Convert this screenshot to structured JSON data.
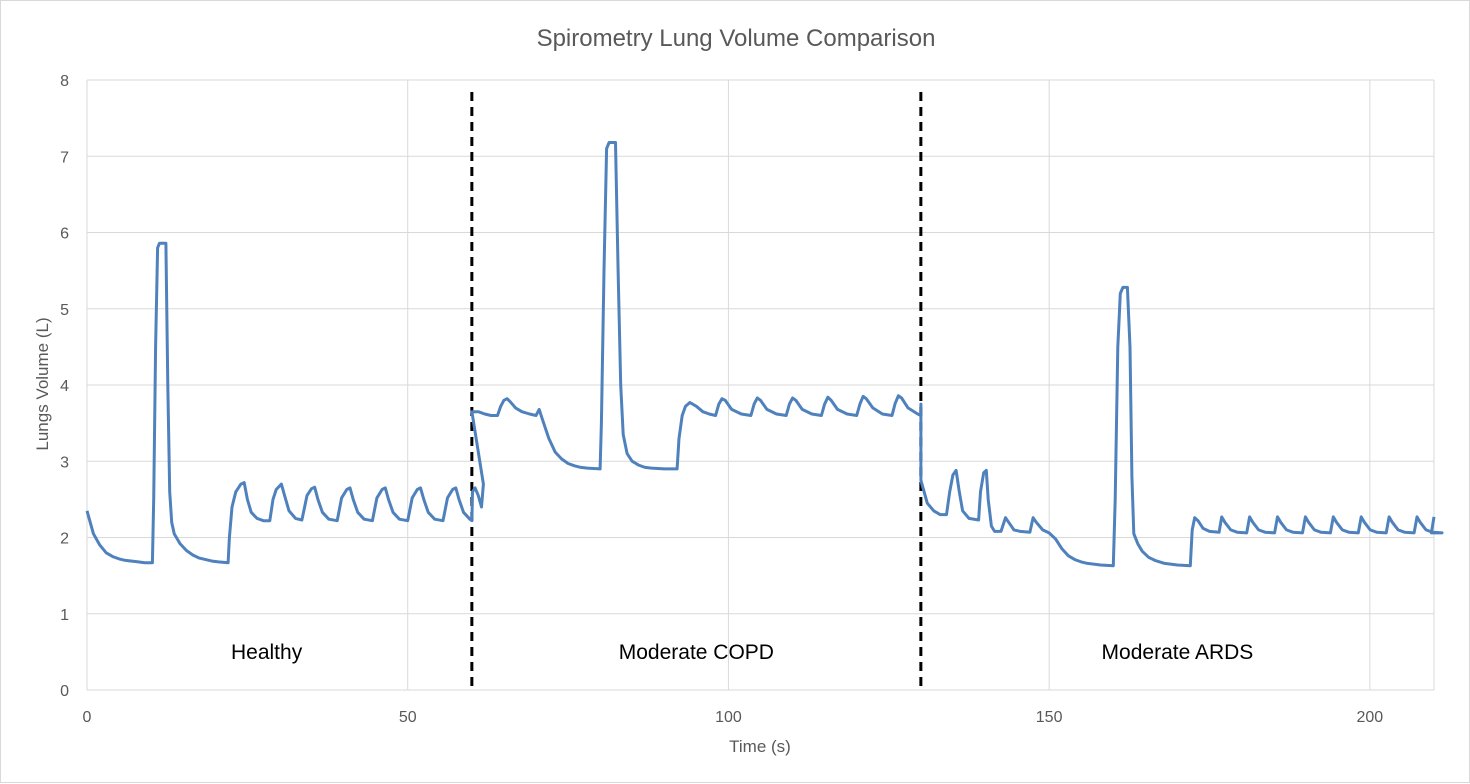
{
  "chart_data": {
    "type": "line",
    "title": "Spirometry Lung Volume Comparison",
    "xlabel": "Time (s)",
    "ylabel": "Lungs Volume (L)",
    "xlim": [
      0,
      210
    ],
    "ylim": [
      0,
      8
    ],
    "x_ticks": [
      "0",
      "50",
      "100",
      "150",
      "200"
    ],
    "y_ticks": [
      "0",
      "1",
      "2",
      "3",
      "4",
      "5",
      "6",
      "7",
      "8"
    ],
    "grid": true,
    "line_color": "#4f81bd",
    "dividers": [
      60,
      130
    ],
    "regions": [
      {
        "label": "Healthy",
        "x": 28,
        "y": 0.5
      },
      {
        "label": "Moderate COPD",
        "x": 95,
        "y": 0.5
      },
      {
        "label": "Moderate ARDS",
        "x": 170,
        "y": 0.5
      }
    ],
    "series": [
      {
        "values_xy": [
          [
            0,
            2.35
          ],
          [
            1,
            2.05
          ],
          [
            2,
            1.9
          ],
          [
            3,
            1.8
          ],
          [
            4,
            1.75
          ],
          [
            5,
            1.72
          ],
          [
            6,
            1.7
          ],
          [
            7,
            1.69
          ],
          [
            8,
            1.68
          ],
          [
            9,
            1.67
          ],
          [
            10.2,
            1.67
          ],
          [
            10.4,
            2.5
          ],
          [
            10.7,
            4.5
          ],
          [
            11,
            5.8
          ],
          [
            11.3,
            5.86
          ],
          [
            12,
            5.86
          ],
          [
            12.3,
            5.86
          ],
          [
            12.6,
            4.0
          ],
          [
            12.9,
            2.6
          ],
          [
            13.2,
            2.2
          ],
          [
            13.6,
            2.05
          ],
          [
            14.5,
            1.92
          ],
          [
            15.5,
            1.83
          ],
          [
            16.5,
            1.77
          ],
          [
            17.5,
            1.73
          ],
          [
            18.5,
            1.71
          ],
          [
            19.5,
            1.69
          ],
          [
            20.5,
            1.68
          ],
          [
            22,
            1.67
          ],
          [
            22.2,
            2.0
          ],
          [
            22.6,
            2.4
          ],
          [
            23.2,
            2.6
          ],
          [
            24,
            2.7
          ],
          [
            24.5,
            2.72
          ],
          [
            25,
            2.5
          ],
          [
            25.6,
            2.33
          ],
          [
            26.5,
            2.25
          ],
          [
            27.5,
            2.22
          ],
          [
            28.5,
            2.22
          ],
          [
            29,
            2.5
          ],
          [
            29.5,
            2.63
          ],
          [
            30.3,
            2.7
          ],
          [
            30.8,
            2.55
          ],
          [
            31.5,
            2.35
          ],
          [
            32.5,
            2.25
          ],
          [
            33.5,
            2.23
          ],
          [
            34.3,
            2.55
          ],
          [
            35,
            2.64
          ],
          [
            35.5,
            2.66
          ],
          [
            36,
            2.5
          ],
          [
            36.7,
            2.33
          ],
          [
            37.7,
            2.24
          ],
          [
            39,
            2.22
          ],
          [
            39.7,
            2.52
          ],
          [
            40.5,
            2.63
          ],
          [
            41,
            2.65
          ],
          [
            41.5,
            2.5
          ],
          [
            42.2,
            2.33
          ],
          [
            43.2,
            2.24
          ],
          [
            44.5,
            2.22
          ],
          [
            45.2,
            2.52
          ],
          [
            46,
            2.63
          ],
          [
            46.5,
            2.65
          ],
          [
            47,
            2.5
          ],
          [
            47.7,
            2.33
          ],
          [
            48.7,
            2.24
          ],
          [
            50,
            2.22
          ],
          [
            50.7,
            2.52
          ],
          [
            51.5,
            2.63
          ],
          [
            52,
            2.65
          ],
          [
            52.5,
            2.5
          ],
          [
            53.2,
            2.33
          ],
          [
            54.2,
            2.24
          ],
          [
            55.5,
            2.22
          ],
          [
            56.2,
            2.52
          ],
          [
            57,
            2.63
          ],
          [
            57.5,
            2.65
          ],
          [
            58,
            2.5
          ],
          [
            58.7,
            2.33
          ],
          [
            59.7,
            2.24
          ],
          [
            60,
            2.22
          ],
          [
            60.1,
            2.6
          ],
          [
            60.5,
            2.65
          ],
          [
            61,
            2.55
          ],
          [
            61.5,
            2.4
          ],
          [
            61.8,
            2.7
          ],
          [
            60,
            3.65
          ],
          [
            61,
            3.65
          ],
          [
            62,
            3.62
          ],
          [
            63,
            3.6
          ],
          [
            64,
            3.6
          ],
          [
            64.5,
            3.72
          ],
          [
            65,
            3.8
          ],
          [
            65.5,
            3.82
          ],
          [
            66,
            3.78
          ],
          [
            66.8,
            3.7
          ],
          [
            67.8,
            3.65
          ],
          [
            69,
            3.62
          ],
          [
            70,
            3.6
          ],
          [
            70.5,
            3.68
          ],
          [
            71,
            3.55
          ],
          [
            72,
            3.3
          ],
          [
            73,
            3.12
          ],
          [
            74,
            3.03
          ],
          [
            75,
            2.97
          ],
          [
            76,
            2.94
          ],
          [
            77,
            2.92
          ],
          [
            78,
            2.91
          ],
          [
            80,
            2.9
          ],
          [
            80.2,
            3.5
          ],
          [
            80.6,
            5.5
          ],
          [
            81,
            7.1
          ],
          [
            81.4,
            7.18
          ],
          [
            82,
            7.18
          ],
          [
            82.4,
            7.18
          ],
          [
            82.8,
            5.5
          ],
          [
            83.2,
            4.0
          ],
          [
            83.6,
            3.35
          ],
          [
            84.2,
            3.1
          ],
          [
            85,
            3.0
          ],
          [
            86,
            2.95
          ],
          [
            87,
            2.92
          ],
          [
            88,
            2.91
          ],
          [
            90,
            2.9
          ],
          [
            92,
            2.9
          ],
          [
            92.3,
            3.3
          ],
          [
            92.8,
            3.6
          ],
          [
            93.3,
            3.72
          ],
          [
            94,
            3.77
          ],
          [
            95,
            3.72
          ],
          [
            96,
            3.65
          ],
          [
            97,
            3.62
          ],
          [
            98,
            3.6
          ],
          [
            98.5,
            3.75
          ],
          [
            99,
            3.82
          ],
          [
            99.5,
            3.8
          ],
          [
            100.5,
            3.68
          ],
          [
            102,
            3.62
          ],
          [
            103.5,
            3.6
          ],
          [
            104,
            3.75
          ],
          [
            104.5,
            3.83
          ],
          [
            105,
            3.8
          ],
          [
            106,
            3.68
          ],
          [
            107.5,
            3.62
          ],
          [
            109,
            3.6
          ],
          [
            109.5,
            3.75
          ],
          [
            110,
            3.83
          ],
          [
            110.5,
            3.8
          ],
          [
            111.5,
            3.68
          ],
          [
            113,
            3.62
          ],
          [
            114.5,
            3.6
          ],
          [
            115,
            3.75
          ],
          [
            115.5,
            3.84
          ],
          [
            116,
            3.8
          ],
          [
            117,
            3.68
          ],
          [
            118.5,
            3.62
          ],
          [
            120,
            3.6
          ],
          [
            120.5,
            3.75
          ],
          [
            121,
            3.85
          ],
          [
            121.5,
            3.82
          ],
          [
            122.5,
            3.7
          ],
          [
            124,
            3.62
          ],
          [
            125.5,
            3.6
          ],
          [
            126,
            3.76
          ],
          [
            126.5,
            3.86
          ],
          [
            127,
            3.83
          ],
          [
            128,
            3.7
          ],
          [
            129.5,
            3.62
          ],
          [
            130,
            3.6
          ],
          [
            130,
            3.75
          ]
        ]
      }
    ]
  }
}
